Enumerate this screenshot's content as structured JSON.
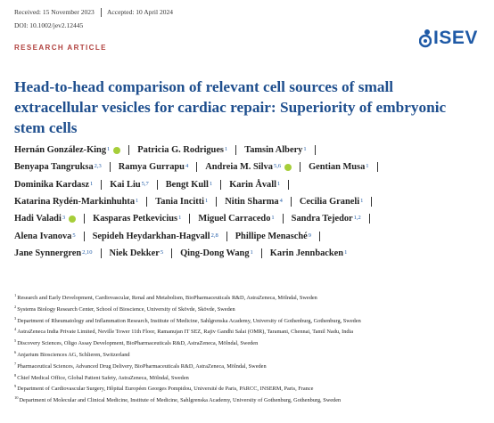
{
  "header": {
    "received": "Received: 15 November 2023",
    "accepted": "Accepted: 10 April 2024",
    "doi": "DOI: 10.1002/jev2.12445"
  },
  "article_type": "RESEARCH ARTICLE",
  "logo": "ISEV",
  "title": "Head-to-head comparison of relevant cell sources of small extracellular vesicles for cardiac repair: Superiority of embryonic stem cells",
  "author_lines": [
    [
      {
        "name": "Hernán González-King",
        "sup": "1",
        "orcid": true
      },
      {
        "name": "Patricia G. Rodrigues",
        "sup": "1"
      },
      {
        "name": "Tamsin Albery",
        "sup": "1"
      }
    ],
    [
      {
        "name": "Benyapa Tangruksa",
        "sup": "2,3"
      },
      {
        "name": "Ramya Gurrapu",
        "sup": "4"
      },
      {
        "name": "Andreia M. Silva",
        "sup": "5,6",
        "orcid": true
      },
      {
        "name": "Gentian Musa",
        "sup": "1"
      }
    ],
    [
      {
        "name": "Dominika Kardasz",
        "sup": "1"
      },
      {
        "name": "Kai Liu",
        "sup": "5,7"
      },
      {
        "name": "Bengt Kull",
        "sup": "1"
      },
      {
        "name": "Karin Åvall",
        "sup": "1"
      }
    ],
    [
      {
        "name": "Katarina Rydén-Markinhuhta",
        "sup": "1"
      },
      {
        "name": "Tania Incitti",
        "sup": "1"
      },
      {
        "name": "Nitin Sharma",
        "sup": "4"
      },
      {
        "name": "Cecilia Graneli",
        "sup": "1"
      }
    ],
    [
      {
        "name": "Hadi Valadi",
        "sup": "3",
        "orcid": true
      },
      {
        "name": "Kasparas Petkevicius",
        "sup": "1"
      },
      {
        "name": "Miguel Carracedo",
        "sup": "1"
      },
      {
        "name": "Sandra Tejedor",
        "sup": "1,2"
      }
    ],
    [
      {
        "name": "Alena Ivanova",
        "sup": "5"
      },
      {
        "name": "Sepideh Heydarkhan-Hagvall",
        "sup": "2,8"
      },
      {
        "name": "Phillipe Menasché",
        "sup": "9"
      }
    ],
    [
      {
        "name": "Jane Synnergren",
        "sup": "2,10"
      },
      {
        "name": "Niek Dekker",
        "sup": "5"
      },
      {
        "name": "Qing-Dong Wang",
        "sup": "1"
      },
      {
        "name": "Karin Jennbacken",
        "sup": "1"
      }
    ]
  ],
  "affiliations": [
    {
      "num": "1",
      "text": "Research and Early Development, Cardiovascular, Renal and Metabolism, BioPharmaceuticals R&D, AstraZeneca, Mölndal, Sweden"
    },
    {
      "num": "2",
      "text": "Systems Biology Research Center, School of Bioscience, University of Skövde, Skövde, Sweden"
    },
    {
      "num": "3",
      "text": "Department of Rheumatology and Inflammation Research, Institute of Medicine, Sahlgrenska Academy, University of Gothenburg, Gothenburg, Sweden"
    },
    {
      "num": "4",
      "text": "AstraZeneca India Private Limited, Neville Tower 11th Floor, Ramanujan IT SEZ, Rajiv Gandhi Salai (OMR), Taramani, Chennai, Tamil Nadu, India"
    },
    {
      "num": "5",
      "text": "Discovery Sciences, Oligo Assay Development, BioPharmaceuticals R&D, AstraZeneca, Mölndal, Sweden"
    },
    {
      "num": "6",
      "text": "Anjarium Biosciences AG, Schlieren, Switzerland"
    },
    {
      "num": "7",
      "text": "Pharmaceutical Sciences, Advanced Drug Delivery, BioPharmaceuticals R&D, AstraZeneca, Mölndal, Sweden"
    },
    {
      "num": "8",
      "text": "Chief Medical Office, Global Patient Safety, AstraZeneca, Mölndal, Sweden"
    },
    {
      "num": "9",
      "text": "Department of Cardiovascular Surgery, Hôpital Européen Georges Pompidou, Université de Paris, PARCC, INSERM, Paris, France"
    },
    {
      "num": "10",
      "text": "Department of Molecular and Clinical Medicine, Institute of Medicine, Sahlgrenska Academy, University of Gothenburg, Gothenburg, Sweden"
    }
  ]
}
